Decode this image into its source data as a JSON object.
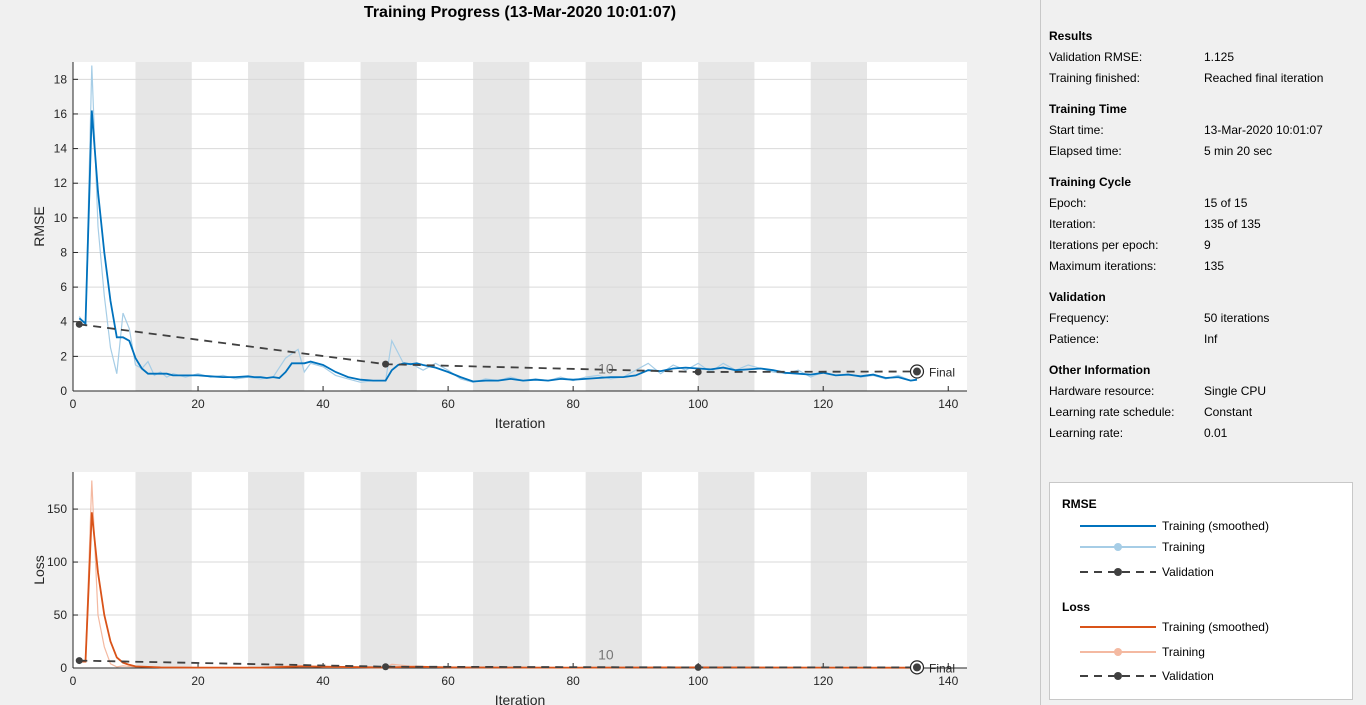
{
  "title": "Training Progress (13-Mar-2020 10:01:07)",
  "colors": {
    "rmse_smoothed": "#0072bd",
    "rmse_raw": "#a6cde6",
    "loss_smoothed": "#d95319",
    "loss_raw": "#f4b9a1",
    "validation": "#404040",
    "band": "#e6e6e6"
  },
  "chart_data": [
    {
      "type": "line",
      "xlabel": "Iteration",
      "ylabel": "RMSE",
      "xlim": [
        0,
        143
      ],
      "ylim": [
        0,
        19
      ],
      "xticks": [
        0,
        20,
        40,
        60,
        80,
        100,
        120,
        140
      ],
      "yticks": [
        0,
        2,
        4,
        6,
        8,
        10,
        12,
        14,
        16,
        18
      ],
      "epoch_bands": [
        [
          10,
          19
        ],
        [
          28,
          37
        ],
        [
          46,
          55
        ],
        [
          64,
          73
        ],
        [
          82,
          91
        ],
        [
          100,
          109
        ],
        [
          118,
          127
        ]
      ],
      "epoch_label": {
        "text": "10",
        "x": 84,
        "y": 1.0
      },
      "grid": true,
      "series": [
        {
          "name": "Training (smoothed)",
          "style": "smoothed",
          "x": [
            1,
            2,
            3,
            4,
            5,
            6,
            7,
            8,
            9,
            10,
            11,
            12,
            13,
            14,
            15,
            16,
            17,
            18,
            19,
            20,
            22,
            24,
            26,
            28,
            29,
            30,
            31,
            32,
            33,
            34,
            35,
            36,
            37,
            38,
            39,
            40,
            42,
            44,
            46,
            48,
            49,
            50,
            51,
            52,
            53,
            54,
            55,
            56,
            58,
            60,
            62,
            64,
            66,
            68,
            70,
            72,
            74,
            76,
            78,
            80,
            82,
            84,
            86,
            88,
            90,
            92,
            94,
            96,
            98,
            100,
            102,
            104,
            106,
            108,
            110,
            112,
            114,
            116,
            118,
            120,
            122,
            124,
            126,
            128,
            130,
            132,
            134,
            135
          ],
          "y": [
            4.2,
            3.9,
            16.2,
            11.5,
            8.0,
            5.2,
            3.1,
            3.1,
            2.9,
            1.9,
            1.3,
            1.0,
            1.0,
            1.0,
            1.0,
            0.9,
            0.9,
            0.9,
            0.9,
            0.9,
            0.85,
            0.8,
            0.8,
            0.85,
            0.8,
            0.8,
            0.75,
            0.8,
            0.75,
            1.1,
            1.6,
            1.6,
            1.6,
            1.7,
            1.6,
            1.5,
            1.1,
            0.8,
            0.65,
            0.6,
            0.6,
            0.6,
            1.2,
            1.5,
            1.6,
            1.55,
            1.6,
            1.5,
            1.35,
            1.1,
            0.8,
            0.55,
            0.6,
            0.6,
            0.7,
            0.6,
            0.65,
            0.6,
            0.7,
            0.65,
            0.7,
            0.75,
            0.8,
            0.8,
            0.9,
            1.2,
            1.15,
            1.3,
            1.35,
            1.3,
            1.25,
            1.35,
            1.2,
            1.25,
            1.3,
            1.2,
            1.05,
            1.0,
            0.95,
            1.05,
            0.9,
            0.95,
            0.85,
            0.95,
            0.75,
            0.8,
            0.6,
            0.65
          ]
        },
        {
          "name": "Training",
          "style": "raw",
          "x": [
            1,
            2,
            3,
            4,
            5,
            6,
            7,
            8,
            9,
            10,
            11,
            12,
            13,
            14,
            15,
            16,
            18,
            20,
            22,
            24,
            26,
            28,
            30,
            32,
            34,
            36,
            37,
            38,
            40,
            42,
            44,
            46,
            48,
            50,
            51,
            52,
            53,
            54,
            55,
            56,
            58,
            60,
            62,
            64,
            66,
            68,
            70,
            72,
            74,
            76,
            78,
            80,
            82,
            84,
            86,
            88,
            90,
            92,
            94,
            96,
            98,
            100,
            102,
            104,
            106,
            108,
            110,
            112,
            114,
            116,
            118,
            120,
            122,
            124,
            126,
            128,
            130,
            132,
            134,
            135
          ],
          "y": [
            4.3,
            3.8,
            18.8,
            9.5,
            5.5,
            2.5,
            1.0,
            4.5,
            3.6,
            1.5,
            1.3,
            1.7,
            0.9,
            1.1,
            0.8,
            1.0,
            0.8,
            1.0,
            0.8,
            0.9,
            0.7,
            0.8,
            0.7,
            0.8,
            1.9,
            2.4,
            1.1,
            1.6,
            1.4,
            0.9,
            0.7,
            0.5,
            0.6,
            0.6,
            2.9,
            2.2,
            1.5,
            1.6,
            1.4,
            1.2,
            1.6,
            1.2,
            0.7,
            0.5,
            0.7,
            0.6,
            0.8,
            0.6,
            0.7,
            0.6,
            0.8,
            0.6,
            0.8,
            0.9,
            0.7,
            0.8,
            1.2,
            1.6,
            1.0,
            1.5,
            1.2,
            1.6,
            1.1,
            1.6,
            1.2,
            1.5,
            1.3,
            1.1,
            1.0,
            1.2,
            0.8,
            1.1,
            0.9,
            1.0,
            0.8,
            0.9,
            0.7,
            0.9,
            0.6,
            0.7
          ]
        },
        {
          "name": "Validation",
          "style": "validation",
          "x": [
            1,
            50,
            100,
            135
          ],
          "y": [
            3.85,
            1.55,
            1.1,
            1.125
          ]
        }
      ],
      "final_label": "Final"
    },
    {
      "type": "line",
      "xlabel": "Iteration",
      "ylabel": "Loss",
      "xlim": [
        0,
        143
      ],
      "ylim": [
        0,
        185
      ],
      "xticks": [
        0,
        20,
        40,
        60,
        80,
        100,
        120,
        140
      ],
      "yticks": [
        0,
        50,
        100,
        150
      ],
      "epoch_bands": [
        [
          10,
          19
        ],
        [
          28,
          37
        ],
        [
          46,
          55
        ],
        [
          64,
          73
        ],
        [
          82,
          91
        ],
        [
          100,
          109
        ],
        [
          118,
          127
        ]
      ],
      "epoch_label": {
        "text": "10",
        "x": 84,
        "y": 8
      },
      "grid": true,
      "series": [
        {
          "name": "Training (smoothed)",
          "style": "smoothed",
          "x": [
            1,
            2,
            3,
            4,
            5,
            6,
            7,
            8,
            9,
            10,
            12,
            14,
            20,
            30,
            37,
            40,
            50,
            55,
            60,
            80,
            100,
            120,
            135
          ],
          "y": [
            6,
            6,
            147,
            90,
            50,
            25,
            10,
            5,
            3,
            1.5,
            1,
            0.6,
            0.4,
            0.4,
            1.5,
            1.2,
            0.5,
            1.2,
            0.6,
            0.4,
            0.6,
            0.4,
            0.3
          ]
        },
        {
          "name": "Training",
          "style": "raw",
          "x": [
            1,
            2,
            3,
            4,
            5,
            6,
            7,
            8,
            10,
            12,
            14,
            20,
            30,
            36,
            40,
            50,
            51,
            55,
            60,
            80,
            100,
            120,
            135
          ],
          "y": [
            6,
            6,
            177,
            50,
            20,
            4,
            1,
            2,
            1,
            1.2,
            0.5,
            0.5,
            0.4,
            2.5,
            0.8,
            0.3,
            3.5,
            1,
            0.5,
            0.4,
            0.8,
            0.4,
            0.3
          ]
        },
        {
          "name": "Validation",
          "style": "validation",
          "x": [
            1,
            50,
            100,
            135
          ],
          "y": [
            7,
            1.2,
            0.6,
            0.6
          ]
        }
      ],
      "final_label": "Final"
    }
  ],
  "panel": {
    "results": {
      "heading": "Results",
      "rows": [
        {
          "k": "Validation RMSE:",
          "v": "1.125"
        },
        {
          "k": "Training finished:",
          "v": "Reached final iteration"
        }
      ]
    },
    "training_time": {
      "heading": "Training Time",
      "rows": [
        {
          "k": "Start time:",
          "v": "13-Mar-2020 10:01:07"
        },
        {
          "k": "Elapsed time:",
          "v": "5 min 20 sec"
        }
      ]
    },
    "training_cycle": {
      "heading": "Training Cycle",
      "rows": [
        {
          "k": "Epoch:",
          "v": "15 of 15"
        },
        {
          "k": "Iteration:",
          "v": "135 of 135"
        },
        {
          "k": "Iterations per epoch:",
          "v": "9"
        },
        {
          "k": "Maximum iterations:",
          "v": "135"
        }
      ]
    },
    "validation": {
      "heading": "Validation",
      "rows": [
        {
          "k": "Frequency:",
          "v": "50 iterations"
        },
        {
          "k": "Patience:",
          "v": "Inf"
        }
      ]
    },
    "other": {
      "heading": "Other Information",
      "rows": [
        {
          "k": "Hardware resource:",
          "v": "Single CPU"
        },
        {
          "k": "Learning rate schedule:",
          "v": "Constant"
        },
        {
          "k": "Learning rate:",
          "v": "0.01"
        }
      ]
    }
  },
  "legend": {
    "rmse_heading": "RMSE",
    "loss_heading": "Loss",
    "smoothed": "Training (smoothed)",
    "training": "Training",
    "validation": "Validation"
  }
}
